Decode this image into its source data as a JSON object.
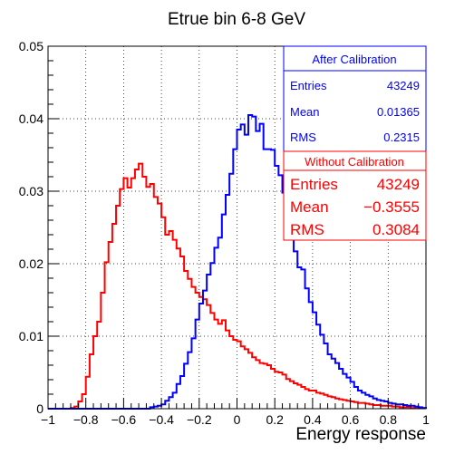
{
  "chart_data": {
    "type": "histogram",
    "title": "Etrue bin 6-8 GeV",
    "xlabel": "Energy response",
    "ylabel": "",
    "xlim": [
      -1,
      1
    ],
    "ylim": [
      0,
      0.05
    ],
    "grid": true,
    "x_ticks": [
      "−1",
      "−0.8",
      "−0.6",
      "−0.4",
      "−0.2",
      "0",
      "0.2",
      "0.4",
      "0.6",
      "0.8",
      "1"
    ],
    "y_ticks": [
      "0",
      "0.01",
      "0.02",
      "0.03",
      "0.04",
      "0.05"
    ],
    "bin_edges_start": -1,
    "bin_width": 0.02,
    "series": [
      {
        "name": "After Calibration",
        "color": "#0000ff",
        "values": [
          0,
          0,
          0,
          0,
          0,
          0,
          0,
          0,
          0,
          0,
          0,
          0,
          0,
          0,
          0,
          0,
          0,
          0,
          0,
          0,
          0,
          0,
          0,
          0,
          0,
          0,
          0,
          0.0002,
          0.0003,
          0.0004,
          0.0006,
          0.0011,
          0.0016,
          0.0022,
          0.0034,
          0.0045,
          0.0062,
          0.0078,
          0.0097,
          0.0123,
          0.0145,
          0.0163,
          0.0185,
          0.0201,
          0.0222,
          0.0236,
          0.0268,
          0.0295,
          0.0324,
          0.0358,
          0.0385,
          0.0392,
          0.0378,
          0.0405,
          0.0403,
          0.0383,
          0.0393,
          0.0358,
          0.0358,
          0.0357,
          0.0335,
          0.0322,
          0.0298,
          0.0272,
          0.0245,
          0.0217,
          0.0195,
          0.0192,
          0.0166,
          0.0147,
          0.0133,
          0.0116,
          0.0102,
          0.009,
          0.0075,
          0.0069,
          0.0063,
          0.0055,
          0.0048,
          0.0043,
          0.0037,
          0.003,
          0.0025,
          0.0022,
          0.0019,
          0.0017,
          0.0014,
          0.0012,
          0.0011,
          0.001,
          0.0008,
          0.0007,
          0.0006,
          0.0006,
          0.0005,
          0.0004,
          0.0004,
          0.0003,
          0.0002,
          0.0001
        ],
        "legend": {
          "title": "After Calibration",
          "rows": [
            {
              "label": "Entries",
              "value": "43249"
            },
            {
              "label": "Mean",
              "value": "0.01365"
            },
            {
              "label": "RMS",
              "value": "0.2315"
            }
          ]
        }
      },
      {
        "name": "Without Calibration",
        "color": "#ff0000",
        "values": [
          0,
          0,
          0,
          0,
          0,
          0,
          0.0001,
          0.0003,
          0.001,
          0.002,
          0.0044,
          0.0075,
          0.01,
          0.012,
          0.016,
          0.0202,
          0.023,
          0.0255,
          0.028,
          0.0303,
          0.0318,
          0.0305,
          0.0318,
          0.033,
          0.0338,
          0.032,
          0.0306,
          0.031,
          0.0292,
          0.0283,
          0.0264,
          0.024,
          0.0245,
          0.0233,
          0.0221,
          0.021,
          0.019,
          0.0179,
          0.0168,
          0.016,
          0.0154,
          0.0151,
          0.0143,
          0.0132,
          0.0123,
          0.0117,
          0.0122,
          0.0108,
          0.01,
          0.0095,
          0.0093,
          0.0086,
          0.0082,
          0.0077,
          0.0071,
          0.0067,
          0.0063,
          0.0062,
          0.006,
          0.0055,
          0.0051,
          0.005,
          0.0047,
          0.0041,
          0.0038,
          0.0035,
          0.0033,
          0.003,
          0.0027,
          0.0025,
          0.0025,
          0.0022,
          0.0021,
          0.0019,
          0.0017,
          0.0016,
          0.0014,
          0.0013,
          0.0012,
          0.0011,
          0.001,
          0.0009,
          0.0008,
          0.0008,
          0.0007,
          0.0006,
          0.0005,
          0.0005,
          0.0004,
          0.0004,
          0.0004,
          0.0003,
          0.0003,
          0.0002,
          0.0002,
          0.0002,
          0.0001,
          0.0001,
          0.0001,
          0.0001
        ],
        "legend": {
          "title": "Without Calibration",
          "rows": [
            {
              "label": "Entries",
              "value": "43249"
            },
            {
              "label": "Mean",
              "value": "−0.3555"
            },
            {
              "label": "RMS",
              "value": "0.3084"
            }
          ]
        }
      }
    ]
  }
}
